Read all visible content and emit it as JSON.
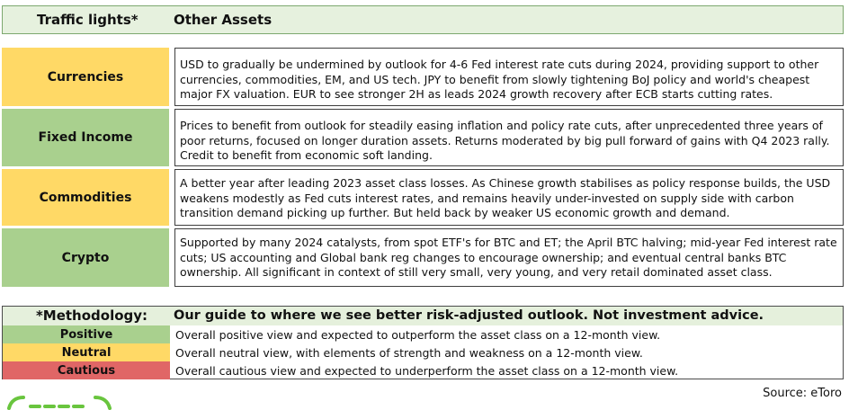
{
  "header": {
    "left_title": "Traffic lights*",
    "right_title": "Other Assets"
  },
  "colors": {
    "positive": "#a9d08e",
    "neutral": "#ffd966",
    "cautious": "#e06666",
    "header_bg": "#e6f1de",
    "logo_green": "#69c53e"
  },
  "assets": [
    {
      "name": "Currencies",
      "status": "neutral",
      "description": "USD to gradually be undermined by outlook for 4-6 Fed interest rate cuts during 2024, providing support to other currencies, commodities, EM, and US tech. JPY to benefit from slowly tightening BoJ policy and world's cheapest major FX valuation. EUR to see stronger 2H as leads 2024 growth recovery after ECB starts cutting rates."
    },
    {
      "name": "Fixed Income",
      "status": "positive",
      "description": "Prices to benefit from outlook for steadily easing inflation and policy rate cuts, after unprecedented three years of poor returns, focused on longer duration assets. Returns moderated by big pull forward of gains with Q4 2023 rally. Credit to benefit from economic soft landing."
    },
    {
      "name": "Commodities",
      "status": "neutral",
      "description": "A better year after leading 2023 asset class losses. As Chinese growth stabilises as policy response builds, the USD weakens modestly as Fed cuts interest rates, and remains heavily under-invested on supply side with carbon transition demand picking up further. But held back by weaker US economic growth and demand."
    },
    {
      "name": "Crypto",
      "status": "positive",
      "description": "Supported by many 2024 catalysts, from spot ETF's for BTC and ET; the April BTC halving; mid-year Fed interest rate cuts; US accounting and Global bank reg changes to encourage ownership; and eventual central banks BTC ownership. All significant in context of still very small, very young, and very retail dominated asset class."
    }
  ],
  "methodology": {
    "title": "*Methodology:",
    "subtitle": "Our guide to where we see better risk-adjusted outlook. Not investment advice.",
    "legend": [
      {
        "label": "Positive",
        "status": "positive",
        "text": "Overall positive view and expected to outperform the asset class on a 12-month view."
      },
      {
        "label": "Neutral",
        "status": "neutral",
        "text": "Overall neutral view, with elements of strength and weakness on a 12-month view."
      },
      {
        "label": "Cautious",
        "status": "cautious",
        "text": "Overall cautious view and expected to underperform the asset class on a 12-month view."
      }
    ]
  },
  "source": "Source: eToro",
  "logo_icon": "etoro-logo-icon"
}
